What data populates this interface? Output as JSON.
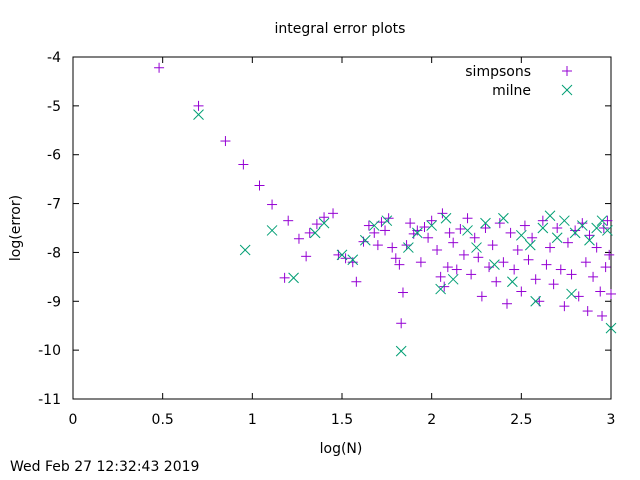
{
  "footer_timestamp": "Wed Feb 27 12:32:43 2019",
  "chart_data": {
    "type": "scatter",
    "title": "integral error plots",
    "xlabel": "log(N)",
    "ylabel": "log(error)",
    "xlim": [
      0,
      3
    ],
    "ylim": [
      -11,
      -4
    ],
    "x_ticks": [
      0,
      0.5,
      1,
      1.5,
      2,
      2.5,
      3
    ],
    "x_tick_labels": [
      "0",
      "0.5",
      "1",
      "1.5",
      "2",
      "2.5",
      "3"
    ],
    "y_ticks": [
      -11,
      -10,
      -9,
      -8,
      -7,
      -6,
      -5,
      -4
    ],
    "y_tick_labels": [
      "-11",
      "-10",
      "-9",
      "-8",
      "-7",
      "-6",
      "-5",
      "-4"
    ],
    "grid": false,
    "legend_position": "top-right",
    "series": [
      {
        "name": "simpsons",
        "marker": "plus",
        "color": "#9400d3",
        "points": [
          [
            0.48,
            -4.22
          ],
          [
            0.7,
            -5.0
          ],
          [
            0.85,
            -5.72
          ],
          [
            0.95,
            -6.2
          ],
          [
            1.04,
            -6.63
          ],
          [
            1.11,
            -7.02
          ],
          [
            1.18,
            -8.52
          ],
          [
            1.2,
            -7.35
          ],
          [
            1.26,
            -7.72
          ],
          [
            1.3,
            -8.08
          ],
          [
            1.32,
            -7.6
          ],
          [
            1.36,
            -7.42
          ],
          [
            1.4,
            -7.28
          ],
          [
            1.45,
            -7.2
          ],
          [
            1.48,
            -8.05
          ],
          [
            1.52,
            -8.12
          ],
          [
            1.56,
            -8.2
          ],
          [
            1.58,
            -8.6
          ],
          [
            1.62,
            -7.78
          ],
          [
            1.65,
            -7.45
          ],
          [
            1.68,
            -7.6
          ],
          [
            1.7,
            -7.85
          ],
          [
            1.72,
            -7.38
          ],
          [
            1.74,
            -7.55
          ],
          [
            1.76,
            -7.3
          ],
          [
            1.78,
            -7.9
          ],
          [
            1.8,
            -8.12
          ],
          [
            1.82,
            -8.25
          ],
          [
            1.83,
            -9.45
          ],
          [
            1.84,
            -8.82
          ],
          [
            1.86,
            -7.85
          ],
          [
            1.88,
            -7.4
          ],
          [
            1.9,
            -7.62
          ],
          [
            1.92,
            -7.55
          ],
          [
            1.94,
            -8.2
          ],
          [
            1.96,
            -7.48
          ],
          [
            1.98,
            -7.7
          ],
          [
            2.0,
            -7.35
          ],
          [
            2.03,
            -7.95
          ],
          [
            2.05,
            -8.5
          ],
          [
            2.06,
            -7.2
          ],
          [
            2.07,
            -8.7
          ],
          [
            2.09,
            -8.3
          ],
          [
            2.1,
            -7.6
          ],
          [
            2.12,
            -7.8
          ],
          [
            2.14,
            -8.35
          ],
          [
            2.16,
            -7.52
          ],
          [
            2.18,
            -8.05
          ],
          [
            2.2,
            -7.3
          ],
          [
            2.22,
            -8.45
          ],
          [
            2.24,
            -7.7
          ],
          [
            2.26,
            -8.1
          ],
          [
            2.28,
            -8.9
          ],
          [
            2.3,
            -7.5
          ],
          [
            2.32,
            -8.3
          ],
          [
            2.34,
            -7.85
          ],
          [
            2.36,
            -8.6
          ],
          [
            2.38,
            -7.4
          ],
          [
            2.4,
            -8.2
          ],
          [
            2.42,
            -9.05
          ],
          [
            2.44,
            -7.6
          ],
          [
            2.46,
            -8.35
          ],
          [
            2.48,
            -7.95
          ],
          [
            2.5,
            -8.8
          ],
          [
            2.52,
            -7.45
          ],
          [
            2.54,
            -8.15
          ],
          [
            2.56,
            -7.7
          ],
          [
            2.58,
            -8.55
          ],
          [
            2.6,
            -9.0
          ],
          [
            2.62,
            -7.35
          ],
          [
            2.64,
            -8.25
          ],
          [
            2.66,
            -7.9
          ],
          [
            2.68,
            -8.65
          ],
          [
            2.7,
            -7.5
          ],
          [
            2.72,
            -8.35
          ],
          [
            2.74,
            -9.1
          ],
          [
            2.76,
            -7.8
          ],
          [
            2.78,
            -8.45
          ],
          [
            2.8,
            -7.55
          ],
          [
            2.82,
            -8.9
          ],
          [
            2.84,
            -7.4
          ],
          [
            2.86,
            -8.2
          ],
          [
            2.87,
            -9.2
          ],
          [
            2.88,
            -7.65
          ],
          [
            2.9,
            -8.5
          ],
          [
            2.92,
            -7.9
          ],
          [
            2.94,
            -8.8
          ],
          [
            2.95,
            -9.3
          ],
          [
            2.96,
            -7.5
          ],
          [
            2.97,
            -8.3
          ],
          [
            2.98,
            -7.35
          ],
          [
            2.99,
            -8.05
          ],
          [
            3.0,
            -8.85
          ]
        ]
      },
      {
        "name": "milne",
        "marker": "cross",
        "color": "#009e73",
        "points": [
          [
            0.7,
            -5.18
          ],
          [
            0.96,
            -7.95
          ],
          [
            1.11,
            -7.55
          ],
          [
            1.23,
            -8.52
          ],
          [
            1.35,
            -7.6
          ],
          [
            1.4,
            -7.4
          ],
          [
            1.5,
            -8.05
          ],
          [
            1.56,
            -8.15
          ],
          [
            1.63,
            -7.75
          ],
          [
            1.68,
            -7.45
          ],
          [
            1.75,
            -7.35
          ],
          [
            1.83,
            -10.02
          ],
          [
            1.87,
            -7.9
          ],
          [
            1.92,
            -7.6
          ],
          [
            2.0,
            -7.45
          ],
          [
            2.05,
            -8.75
          ],
          [
            2.08,
            -7.3
          ],
          [
            2.12,
            -8.55
          ],
          [
            2.2,
            -7.55
          ],
          [
            2.25,
            -7.9
          ],
          [
            2.3,
            -7.4
          ],
          [
            2.35,
            -8.25
          ],
          [
            2.4,
            -7.3
          ],
          [
            2.45,
            -8.6
          ],
          [
            2.5,
            -7.65
          ],
          [
            2.55,
            -7.85
          ],
          [
            2.58,
            -9.0
          ],
          [
            2.62,
            -7.5
          ],
          [
            2.66,
            -7.25
          ],
          [
            2.7,
            -7.7
          ],
          [
            2.74,
            -7.35
          ],
          [
            2.78,
            -8.85
          ],
          [
            2.8,
            -7.6
          ],
          [
            2.84,
            -7.45
          ],
          [
            2.88,
            -7.75
          ],
          [
            2.92,
            -7.5
          ],
          [
            2.95,
            -7.35
          ],
          [
            2.98,
            -7.55
          ],
          [
            3.0,
            -9.55
          ]
        ]
      }
    ]
  }
}
